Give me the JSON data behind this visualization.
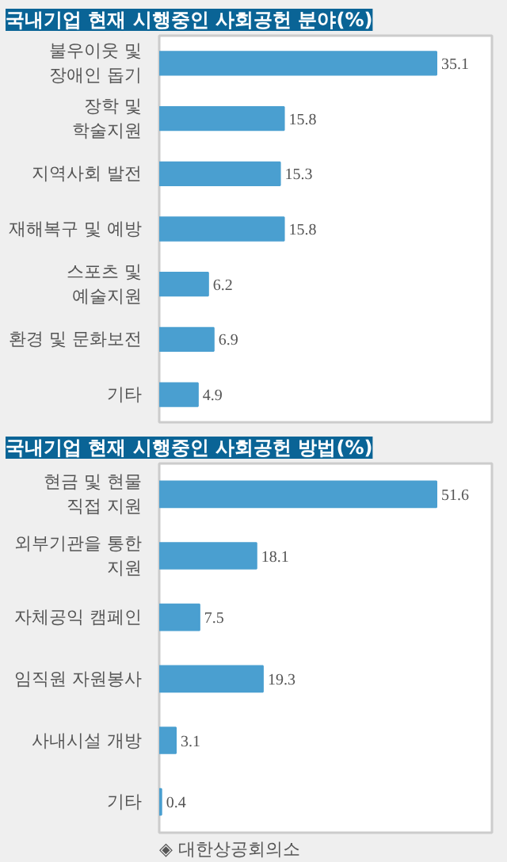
{
  "chart_data": [
    {
      "type": "bar",
      "orientation": "horizontal",
      "title": "국내기업 현재 시행중인 사회공헌 분야(%)",
      "categories": [
        "불우이웃 및\n장애인 돕기",
        "장학 및\n학술지원",
        "지역사회 발전",
        "재해복구 및 예방",
        "스포츠 및\n예술지원",
        "환경 및 문화보전",
        "기타"
      ],
      "values": [
        35.1,
        15.8,
        15.3,
        15.8,
        6.2,
        6.9,
        4.9
      ],
      "color": "#4a9fd0",
      "data_labels": true,
      "tick_labels": "y",
      "grid": false
    },
    {
      "type": "bar",
      "orientation": "horizontal",
      "title": "국내기업 현재 시행중인 사회공헌 방법(%)",
      "categories": [
        "현금 및 현물\n직접 지원",
        "외부기관을 통한\n지원",
        "자체공익 캠페인",
        "임직원 자원봉사",
        "사내시설 개방",
        "기타"
      ],
      "values": [
        51.6,
        18.1,
        7.5,
        19.3,
        3.1,
        0.4
      ],
      "color": "#4a9fd0",
      "data_labels": true,
      "tick_labels": "y",
      "grid": false,
      "annotations": [
        "◈ 대한상공회의소"
      ]
    }
  ]
}
